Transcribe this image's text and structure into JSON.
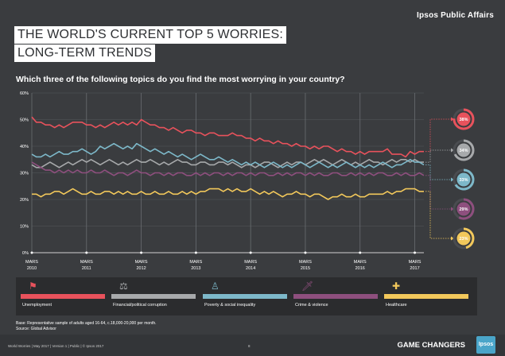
{
  "brand": "Ipsos Public Affairs",
  "title_line1": "THE WORLD'S CURRENT TOP 5 WORRIES:",
  "title_line2": "LONG-TERM TRENDS",
  "question": "Which three of the following topics do you find the most worrying in your country?",
  "chart_data": {
    "type": "line",
    "ylim": [
      0,
      60
    ],
    "y_ticks": [
      "0%",
      "10%",
      "20%",
      "30%",
      "40%",
      "50%",
      "60%"
    ],
    "x_ticks": [
      {
        "month": "MARS",
        "year": "2010"
      },
      {
        "month": "MARS",
        "year": "2011"
      },
      {
        "month": "MARS",
        "year": "2012"
      },
      {
        "month": "MARS",
        "year": "2013"
      },
      {
        "month": "MARS",
        "year": "2014"
      },
      {
        "month": "MARS",
        "year": "2015"
      },
      {
        "month": "MARS",
        "year": "2016"
      },
      {
        "month": "MARS",
        "year": "2017"
      }
    ],
    "x_range": [
      "2010-03",
      "2017-04"
    ],
    "x_months": [
      0,
      1,
      2,
      3,
      4,
      5,
      6,
      7,
      8,
      9,
      10,
      11,
      12,
      13,
      14,
      15,
      16,
      17,
      18,
      19,
      20,
      21,
      22,
      23,
      24,
      25,
      26,
      27,
      28,
      29,
      30,
      31,
      32,
      33,
      34,
      35,
      36,
      37,
      38,
      39,
      40,
      41,
      42,
      43,
      44,
      45,
      46,
      47,
      48,
      49,
      50,
      51,
      52,
      53,
      54,
      55,
      56,
      57,
      58,
      59,
      60,
      61,
      62,
      63,
      64,
      65,
      66,
      67,
      68,
      69,
      70,
      71,
      72,
      73,
      74,
      75,
      76,
      77,
      78,
      79,
      80,
      81,
      82,
      83,
      84,
      85,
      86
    ],
    "series": [
      {
        "name": "Unemployment",
        "color": "#e8525c",
        "latest_label": "38%",
        "latest": 38,
        "values": [
          51,
          49,
          49,
          48,
          48,
          47,
          48,
          47,
          48,
          49,
          49,
          49,
          48,
          48,
          47,
          48,
          47,
          48,
          49,
          48,
          49,
          48,
          49,
          48,
          50,
          49,
          48,
          48,
          47,
          47,
          46,
          47,
          46,
          45,
          46,
          46,
          45,
          45,
          44,
          45,
          45,
          44,
          44,
          44,
          45,
          44,
          44,
          43,
          43,
          42,
          43,
          42,
          42,
          41,
          42,
          41,
          41,
          40,
          41,
          40,
          40,
          39,
          40,
          39,
          40,
          40,
          39,
          38,
          39,
          38,
          38,
          37,
          38,
          37,
          38,
          38,
          38,
          38,
          39,
          37,
          37,
          37,
          36,
          38,
          37,
          38,
          38
        ]
      },
      {
        "name": "Financial/political corruption",
        "color": "#a7a9ab",
        "latest_label": "34%",
        "latest": 34,
        "values": [
          33,
          32,
          32,
          33,
          34,
          33,
          32,
          33,
          34,
          33,
          34,
          35,
          34,
          35,
          34,
          33,
          34,
          35,
          34,
          33,
          34,
          33,
          34,
          35,
          34,
          34,
          35,
          34,
          33,
          34,
          33,
          34,
          35,
          34,
          34,
          33,
          33,
          34,
          34,
          33,
          33,
          34,
          34,
          33,
          34,
          33,
          32,
          33,
          33,
          32,
          33,
          34,
          34,
          33,
          32,
          33,
          34,
          33,
          34,
          34,
          33,
          34,
          35,
          34,
          35,
          34,
          33,
          34,
          35,
          34,
          33,
          34,
          33,
          34,
          35,
          34,
          34,
          33,
          34,
          35,
          34,
          35,
          35,
          34,
          35,
          34,
          34
        ]
      },
      {
        "name": "Poverty & social inequality",
        "color": "#7db8c9",
        "latest_label": "33%",
        "latest": 33,
        "values": [
          37,
          36,
          36,
          37,
          36,
          37,
          38,
          37,
          37,
          38,
          38,
          39,
          38,
          37,
          38,
          40,
          39,
          40,
          41,
          40,
          39,
          40,
          39,
          41,
          40,
          39,
          38,
          39,
          38,
          37,
          38,
          37,
          36,
          37,
          36,
          35,
          36,
          37,
          36,
          35,
          35,
          36,
          35,
          34,
          35,
          34,
          33,
          34,
          33,
          34,
          33,
          32,
          33,
          34,
          33,
          32,
          33,
          32,
          33,
          34,
          33,
          32,
          33,
          34,
          33,
          32,
          33,
          32,
          33,
          34,
          33,
          32,
          33,
          32,
          33,
          32,
          33,
          34,
          33,
          32,
          33,
          33,
          34,
          35,
          34,
          34,
          33
        ]
      },
      {
        "name": "Crime & violence",
        "color": "#8e4f7e",
        "latest_label": "29%",
        "latest": 29,
        "values": [
          34,
          33,
          32,
          31,
          31,
          30,
          31,
          30,
          31,
          30,
          31,
          30,
          30,
          31,
          30,
          30,
          31,
          30,
          29,
          30,
          30,
          29,
          30,
          31,
          30,
          30,
          29,
          30,
          30,
          29,
          30,
          29,
          30,
          30,
          29,
          29,
          30,
          29,
          30,
          29,
          30,
          30,
          29,
          30,
          29,
          30,
          30,
          29,
          30,
          29,
          30,
          30,
          29,
          29,
          30,
          29,
          30,
          29,
          30,
          30,
          29,
          30,
          29,
          30,
          29,
          29,
          30,
          30,
          29,
          29,
          30,
          29,
          30,
          29,
          30,
          29,
          30,
          30,
          29,
          29,
          30,
          29,
          30,
          29,
          29,
          30,
          29
        ]
      },
      {
        "name": "Healthcare",
        "color": "#f2c85b",
        "latest_label": "23%",
        "latest": 23,
        "values": [
          22,
          22,
          21,
          22,
          22,
          23,
          23,
          22,
          23,
          24,
          23,
          22,
          22,
          23,
          22,
          22,
          23,
          23,
          22,
          23,
          22,
          23,
          22,
          22,
          23,
          22,
          22,
          23,
          22,
          22,
          23,
          22,
          22,
          23,
          22,
          23,
          22,
          23,
          23,
          24,
          24,
          24,
          23,
          24,
          23,
          24,
          23,
          23,
          24,
          23,
          22,
          23,
          22,
          23,
          22,
          21,
          22,
          22,
          23,
          22,
          22,
          21,
          22,
          22,
          21,
          20,
          21,
          21,
          22,
          21,
          21,
          22,
          21,
          21,
          22,
          22,
          22,
          22,
          23,
          22,
          23,
          23,
          24,
          24,
          24,
          23,
          23
        ]
      }
    ]
  },
  "legend": [
    {
      "label": "Unemployment",
      "color": "#e8525c",
      "icon": "sign-icon",
      "glyph": "⚑"
    },
    {
      "label": "Financial/political corruption",
      "color": "#a7a9ab",
      "icon": "money-icon",
      "glyph": "⚖"
    },
    {
      "label": "Poverty & social inequality",
      "color": "#7db8c9",
      "icon": "person-icon",
      "glyph": "♙"
    },
    {
      "label": "Crime & violence",
      "color": "#8e4f7e",
      "icon": "knife-icon",
      "glyph": "🗡"
    },
    {
      "label": "Healthcare",
      "color": "#f2c85b",
      "icon": "ambulance-icon",
      "glyph": "✚"
    }
  ],
  "base_note": "Base: Representative sample of adults aged 16-64, c.18,000-20,000 per month.",
  "source_note": "Source: Global Advisor",
  "footer_left": "World Worries | May 2017 | Version 1 | Public | © Ipsos 2017",
  "footer_page": "8",
  "footer_tagline": "GAME CHANGERS",
  "footer_logo": "Ipsos"
}
